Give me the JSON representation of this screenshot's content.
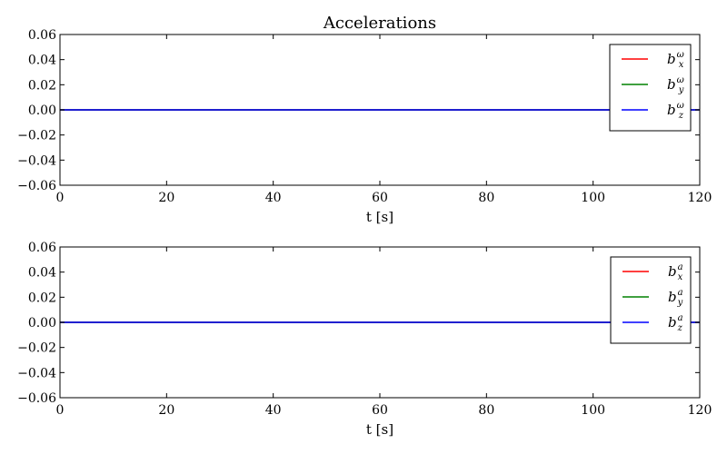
{
  "title": "Accelerations",
  "chart_data": [
    {
      "type": "line",
      "title": "Accelerations",
      "xlabel": "t [s]",
      "ylabel": "",
      "xlim": [
        0,
        120
      ],
      "ylim": [
        -0.06,
        0.06
      ],
      "xticks": [
        0,
        20,
        40,
        60,
        80,
        100,
        120
      ],
      "yticks": [
        -0.06,
        -0.04,
        -0.02,
        0.0,
        0.02,
        0.04,
        0.06
      ],
      "ytick_labels": [
        "−0.06",
        "−0.04",
        "−0.02",
        "0.00",
        "0.02",
        "0.04",
        "0.06"
      ],
      "grid": false,
      "legend_placement": "top-right",
      "series": [
        {
          "name": "b_x^ω",
          "base": "b",
          "sub": "x",
          "sup": "ω",
          "color": "#ff0000",
          "x": [
            0,
            120
          ],
          "y": [
            0,
            0
          ]
        },
        {
          "name": "b_y^ω",
          "base": "b",
          "sub": "y",
          "sup": "ω",
          "color": "#008000",
          "x": [
            0,
            120
          ],
          "y": [
            0,
            0
          ]
        },
        {
          "name": "b_z^ω",
          "base": "b",
          "sub": "z",
          "sup": "ω",
          "color": "#0000ff",
          "x": [
            0,
            120
          ],
          "y": [
            0,
            0
          ]
        }
      ]
    },
    {
      "type": "line",
      "title": "",
      "xlabel": "t [s]",
      "ylabel": "",
      "xlim": [
        0,
        120
      ],
      "ylim": [
        -0.06,
        0.06
      ],
      "xticks": [
        0,
        20,
        40,
        60,
        80,
        100,
        120
      ],
      "yticks": [
        -0.06,
        -0.04,
        -0.02,
        0.0,
        0.02,
        0.04,
        0.06
      ],
      "ytick_labels": [
        "−0.06",
        "−0.04",
        "−0.02",
        "0.00",
        "0.02",
        "0.04",
        "0.06"
      ],
      "grid": false,
      "legend_placement": "top-right",
      "series": [
        {
          "name": "b_x^a",
          "base": "b",
          "sub": "x",
          "sup": "a",
          "color": "#ff0000",
          "x": [
            0,
            120
          ],
          "y": [
            0,
            0
          ]
        },
        {
          "name": "b_y^a",
          "base": "b",
          "sub": "y",
          "sup": "a",
          "color": "#008000",
          "x": [
            0,
            120
          ],
          "y": [
            0,
            0
          ]
        },
        {
          "name": "b_z^a",
          "base": "b",
          "sub": "z",
          "sup": "a",
          "color": "#0000ff",
          "x": [
            0,
            120
          ],
          "y": [
            0,
            0
          ]
        }
      ]
    }
  ]
}
